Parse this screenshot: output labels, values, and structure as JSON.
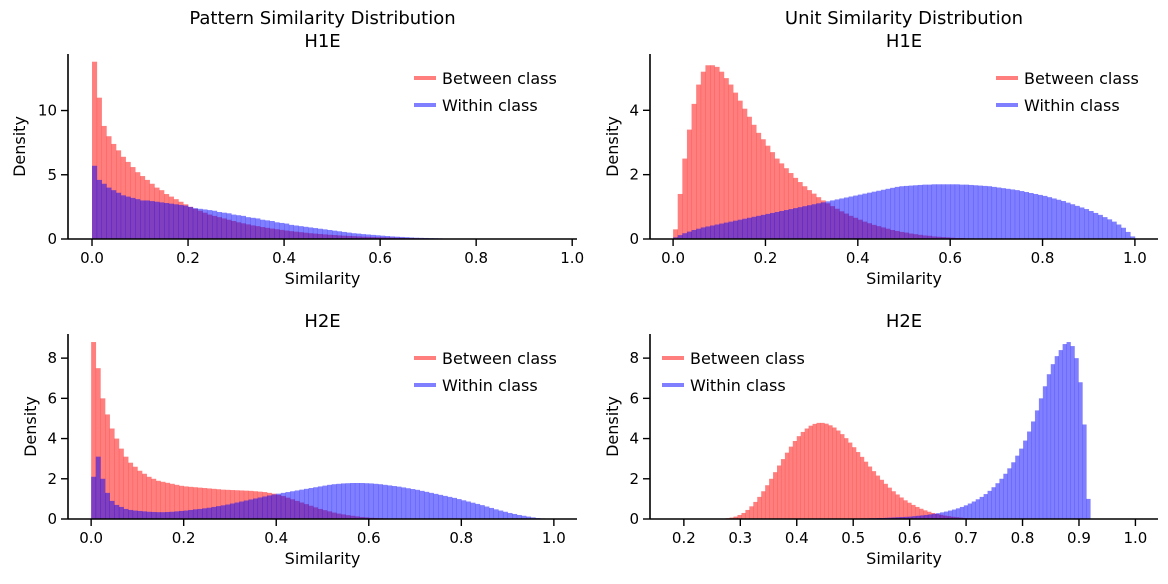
{
  "chart_data": [
    {
      "type": "histogram",
      "title_lines": [
        "Pattern Similarity Distribution",
        "H1E"
      ],
      "xlabel": "Similarity",
      "ylabel": "Density",
      "xlim": [
        -0.05,
        1.01
      ],
      "ylim": [
        0,
        14.4
      ],
      "xticks": [
        0.0,
        0.2,
        0.4,
        0.6,
        0.8,
        1.0
      ],
      "xtick_labels": [
        "0.0",
        "0.2",
        "0.4",
        "0.6",
        "0.8",
        "1.0"
      ],
      "yticks": [
        0,
        5,
        10
      ],
      "ytick_labels": [
        "0",
        "5",
        "10"
      ],
      "bin_width": 0.01,
      "legend_position": "upper right",
      "series": [
        {
          "name": "Between class",
          "color": "#ff0000",
          "alpha": 0.5,
          "bin_start": 0.0,
          "values": [
            13.8,
            11.0,
            8.8,
            8.0,
            7.4,
            6.9,
            6.4,
            6.0,
            5.6,
            5.2,
            4.9,
            4.6,
            4.3,
            4.0,
            3.8,
            3.5,
            3.3,
            3.1,
            2.9,
            2.7,
            2.5,
            2.35,
            2.2,
            2.05,
            1.9,
            1.8,
            1.7,
            1.6,
            1.5,
            1.4,
            1.3,
            1.22,
            1.14,
            1.06,
            1.0,
            0.93,
            0.87,
            0.81,
            0.76,
            0.71,
            0.66,
            0.61,
            0.57,
            0.53,
            0.49,
            0.45,
            0.42,
            0.39,
            0.36,
            0.33,
            0.31,
            0.28,
            0.26,
            0.24,
            0.22,
            0.2,
            0.18,
            0.17,
            0.15,
            0.14,
            0.13,
            0.12,
            0.11,
            0.1,
            0.09,
            0.08,
            0.07,
            0.06,
            0.05,
            0.05,
            0.04,
            0.04,
            0.03,
            0.03,
            0.02,
            0.02,
            0.02,
            0.01,
            0.01,
            0.01
          ]
        },
        {
          "name": "Within class",
          "color": "#0000ff",
          "alpha": 0.5,
          "bin_start": 0.0,
          "values": [
            5.7,
            4.6,
            4.3,
            4.0,
            3.8,
            3.6,
            3.4,
            3.3,
            3.2,
            3.1,
            3.0,
            3.0,
            2.95,
            2.9,
            2.85,
            2.8,
            2.75,
            2.7,
            2.65,
            2.6,
            2.5,
            2.4,
            2.35,
            2.3,
            2.25,
            2.2,
            2.1,
            2.05,
            2.0,
            1.9,
            1.85,
            1.8,
            1.7,
            1.65,
            1.6,
            1.5,
            1.45,
            1.4,
            1.3,
            1.25,
            1.2,
            1.1,
            1.05,
            1.0,
            0.95,
            0.9,
            0.85,
            0.8,
            0.75,
            0.7,
            0.65,
            0.6,
            0.55,
            0.5,
            0.45,
            0.42,
            0.38,
            0.35,
            0.32,
            0.29,
            0.26,
            0.23,
            0.2,
            0.18,
            0.16,
            0.14,
            0.12,
            0.1,
            0.09,
            0.08,
            0.07,
            0.06,
            0.05,
            0.04,
            0.03,
            0.03,
            0.02,
            0.02,
            0.01,
            0.01
          ]
        }
      ]
    },
    {
      "type": "histogram",
      "title_lines": [
        "Unit Similarity Distribution",
        "H1E"
      ],
      "xlabel": "Similarity",
      "ylabel": "Density",
      "xlim": [
        -0.05,
        1.05
      ],
      "ylim": [
        0,
        5.75
      ],
      "xticks": [
        0.0,
        0.2,
        0.4,
        0.6,
        0.8,
        1.0
      ],
      "xtick_labels": [
        "0.0",
        "0.2",
        "0.4",
        "0.6",
        "0.8",
        "1.0"
      ],
      "yticks": [
        0,
        2,
        4
      ],
      "ytick_labels": [
        "0",
        "2",
        "4"
      ],
      "bin_width": 0.01,
      "legend_position": "upper right",
      "series": [
        {
          "name": "Between class",
          "color": "#ff0000",
          "alpha": 0.5,
          "bin_start": 0.0,
          "values": [
            0.3,
            1.4,
            2.5,
            3.4,
            4.2,
            4.8,
            5.2,
            5.4,
            5.4,
            5.35,
            5.2,
            5.0,
            4.8,
            4.55,
            4.3,
            4.05,
            3.8,
            3.55,
            3.3,
            3.1,
            2.9,
            2.7,
            2.5,
            2.35,
            2.2,
            2.05,
            1.9,
            1.77,
            1.64,
            1.52,
            1.41,
            1.3,
            1.2,
            1.11,
            1.02,
            0.94,
            0.86,
            0.79,
            0.72,
            0.66,
            0.6,
            0.54,
            0.49,
            0.44,
            0.4,
            0.36,
            0.32,
            0.28,
            0.25,
            0.22,
            0.2,
            0.17,
            0.15,
            0.13,
            0.11,
            0.1,
            0.08,
            0.07,
            0.06,
            0.05,
            0.04,
            0.03,
            0.03,
            0.02,
            0.02,
            0.01,
            0.01
          ]
        },
        {
          "name": "Within class",
          "color": "#0000ff",
          "alpha": 0.5,
          "bin_start": 0.0,
          "values": [
            0.05,
            0.12,
            0.18,
            0.23,
            0.28,
            0.32,
            0.36,
            0.39,
            0.42,
            0.45,
            0.48,
            0.51,
            0.54,
            0.57,
            0.6,
            0.63,
            0.66,
            0.69,
            0.72,
            0.75,
            0.78,
            0.81,
            0.84,
            0.87,
            0.9,
            0.93,
            0.96,
            0.99,
            1.02,
            1.05,
            1.08,
            1.11,
            1.14,
            1.17,
            1.2,
            1.23,
            1.26,
            1.29,
            1.32,
            1.35,
            1.38,
            1.41,
            1.44,
            1.47,
            1.5,
            1.53,
            1.56,
            1.59,
            1.62,
            1.64,
            1.65,
            1.66,
            1.67,
            1.68,
            1.69,
            1.69,
            1.7,
            1.7,
            1.7,
            1.7,
            1.7,
            1.7,
            1.69,
            1.69,
            1.68,
            1.67,
            1.66,
            1.65,
            1.64,
            1.62,
            1.6,
            1.58,
            1.56,
            1.54,
            1.52,
            1.49,
            1.46,
            1.43,
            1.4,
            1.37,
            1.34,
            1.3,
            1.26,
            1.22,
            1.18,
            1.13,
            1.08,
            1.03,
            0.98,
            0.93,
            0.87,
            0.81,
            0.75,
            0.68,
            0.61,
            0.54,
            0.45,
            0.35,
            0.22,
            0.08
          ]
        }
      ]
    },
    {
      "type": "histogram",
      "title_lines": [
        "H2E"
      ],
      "xlabel": "Similarity",
      "ylabel": "Density",
      "xlim": [
        -0.05,
        1.05
      ],
      "ylim": [
        0,
        9.2
      ],
      "xticks": [
        0.0,
        0.2,
        0.4,
        0.6,
        0.8,
        1.0
      ],
      "xtick_labels": [
        "0.0",
        "0.2",
        "0.4",
        "0.6",
        "0.8",
        "1.0"
      ],
      "yticks": [
        0,
        2,
        4,
        6,
        8
      ],
      "ytick_labels": [
        "0",
        "2",
        "4",
        "6",
        "8"
      ],
      "bin_width": 0.01,
      "legend_position": "upper right",
      "series": [
        {
          "name": "Between class",
          "color": "#ff0000",
          "alpha": 0.5,
          "bin_start": 0.0,
          "values": [
            8.8,
            7.5,
            6.0,
            5.2,
            4.5,
            4.0,
            3.5,
            3.1,
            2.8,
            2.6,
            2.4,
            2.25,
            2.1,
            2.0,
            1.9,
            1.85,
            1.8,
            1.75,
            1.7,
            1.65,
            1.62,
            1.6,
            1.58,
            1.56,
            1.54,
            1.52,
            1.5,
            1.48,
            1.46,
            1.45,
            1.44,
            1.43,
            1.42,
            1.41,
            1.4,
            1.38,
            1.36,
            1.34,
            1.3,
            1.26,
            1.2,
            1.14,
            1.06,
            0.98,
            0.9,
            0.82,
            0.74,
            0.66,
            0.58,
            0.5,
            0.44,
            0.38,
            0.32,
            0.27,
            0.23,
            0.19,
            0.16,
            0.13,
            0.1,
            0.08,
            0.06,
            0.05,
            0.04,
            0.03,
            0.02,
            0.02,
            0.01,
            0.01
          ]
        },
        {
          "name": "Within class",
          "color": "#0000ff",
          "alpha": 0.5,
          "bin_start": 0.0,
          "values": [
            2.1,
            3.1,
            2.0,
            1.3,
            0.9,
            0.7,
            0.6,
            0.5,
            0.45,
            0.42,
            0.4,
            0.38,
            0.36,
            0.35,
            0.34,
            0.34,
            0.35,
            0.36,
            0.38,
            0.4,
            0.42,
            0.45,
            0.48,
            0.5,
            0.53,
            0.56,
            0.6,
            0.64,
            0.68,
            0.72,
            0.77,
            0.82,
            0.87,
            0.92,
            0.97,
            1.02,
            1.07,
            1.12,
            1.17,
            1.22,
            1.26,
            1.3,
            1.34,
            1.38,
            1.42,
            1.46,
            1.5,
            1.54,
            1.58,
            1.62,
            1.66,
            1.7,
            1.73,
            1.75,
            1.77,
            1.78,
            1.79,
            1.79,
            1.79,
            1.78,
            1.77,
            1.75,
            1.73,
            1.7,
            1.67,
            1.64,
            1.61,
            1.57,
            1.53,
            1.49,
            1.45,
            1.4,
            1.35,
            1.3,
            1.25,
            1.2,
            1.15,
            1.1,
            1.05,
            0.99,
            0.93,
            0.87,
            0.81,
            0.75,
            0.69,
            0.62,
            0.55,
            0.48,
            0.42,
            0.36,
            0.3,
            0.25,
            0.2,
            0.16,
            0.12,
            0.08,
            0.05,
            0.03
          ]
        }
      ]
    },
    {
      "type": "histogram",
      "title_lines": [
        "H2E"
      ],
      "xlabel": "Similarity",
      "ylabel": "Density",
      "xlim": [
        0.14,
        1.04
      ],
      "ylim": [
        0,
        9.2
      ],
      "xticks": [
        0.2,
        0.3,
        0.4,
        0.5,
        0.6,
        0.7,
        0.8,
        0.9,
        1.0
      ],
      "xtick_labels": [
        "0.2",
        "0.3",
        "0.4",
        "0.5",
        "0.6",
        "0.7",
        "0.8",
        "0.9",
        "1.0"
      ],
      "yticks": [
        0,
        2,
        4,
        6,
        8
      ],
      "ytick_labels": [
        "0",
        "2",
        "4",
        "6",
        "8"
      ],
      "bin_width": 0.007,
      "legend_position": "upper left",
      "series": [
        {
          "name": "Between class",
          "color": "#ff0000",
          "alpha": 0.5,
          "bin_start": 0.26,
          "values": [
            0.01,
            0.02,
            0.04,
            0.07,
            0.12,
            0.2,
            0.3,
            0.45,
            0.63,
            0.85,
            1.1,
            1.38,
            1.68,
            2.0,
            2.33,
            2.66,
            2.98,
            3.3,
            3.6,
            3.88,
            4.12,
            4.33,
            4.5,
            4.64,
            4.73,
            4.78,
            4.78,
            4.74,
            4.66,
            4.55,
            4.4,
            4.22,
            4.02,
            3.8,
            3.57,
            3.33,
            3.09,
            2.85,
            2.61,
            2.38,
            2.16,
            1.95,
            1.75,
            1.56,
            1.38,
            1.22,
            1.07,
            0.93,
            0.81,
            0.7,
            0.6,
            0.51,
            0.43,
            0.36,
            0.3,
            0.25,
            0.21,
            0.17,
            0.14,
            0.11,
            0.09,
            0.07,
            0.05,
            0.04,
            0.03,
            0.02,
            0.02,
            0.01,
            0.01
          ]
        },
        {
          "name": "Within class",
          "color": "#0000ff",
          "alpha": 0.5,
          "bin_start": 0.5,
          "values": [
            0.02,
            0.02,
            0.03,
            0.03,
            0.04,
            0.04,
            0.05,
            0.05,
            0.06,
            0.07,
            0.08,
            0.09,
            0.1,
            0.11,
            0.12,
            0.14,
            0.16,
            0.18,
            0.2,
            0.23,
            0.26,
            0.29,
            0.33,
            0.37,
            0.42,
            0.47,
            0.53,
            0.6,
            0.68,
            0.77,
            0.87,
            0.98,
            1.1,
            1.24,
            1.4,
            1.58,
            1.78,
            2.0,
            2.25,
            2.52,
            2.82,
            3.15,
            3.5,
            3.9,
            4.35,
            4.85,
            5.4,
            6.0,
            6.6,
            7.2,
            7.7,
            8.1,
            8.4,
            8.7,
            8.8,
            8.6,
            8.0,
            6.8,
            4.7,
            1.0
          ]
        }
      ]
    }
  ]
}
